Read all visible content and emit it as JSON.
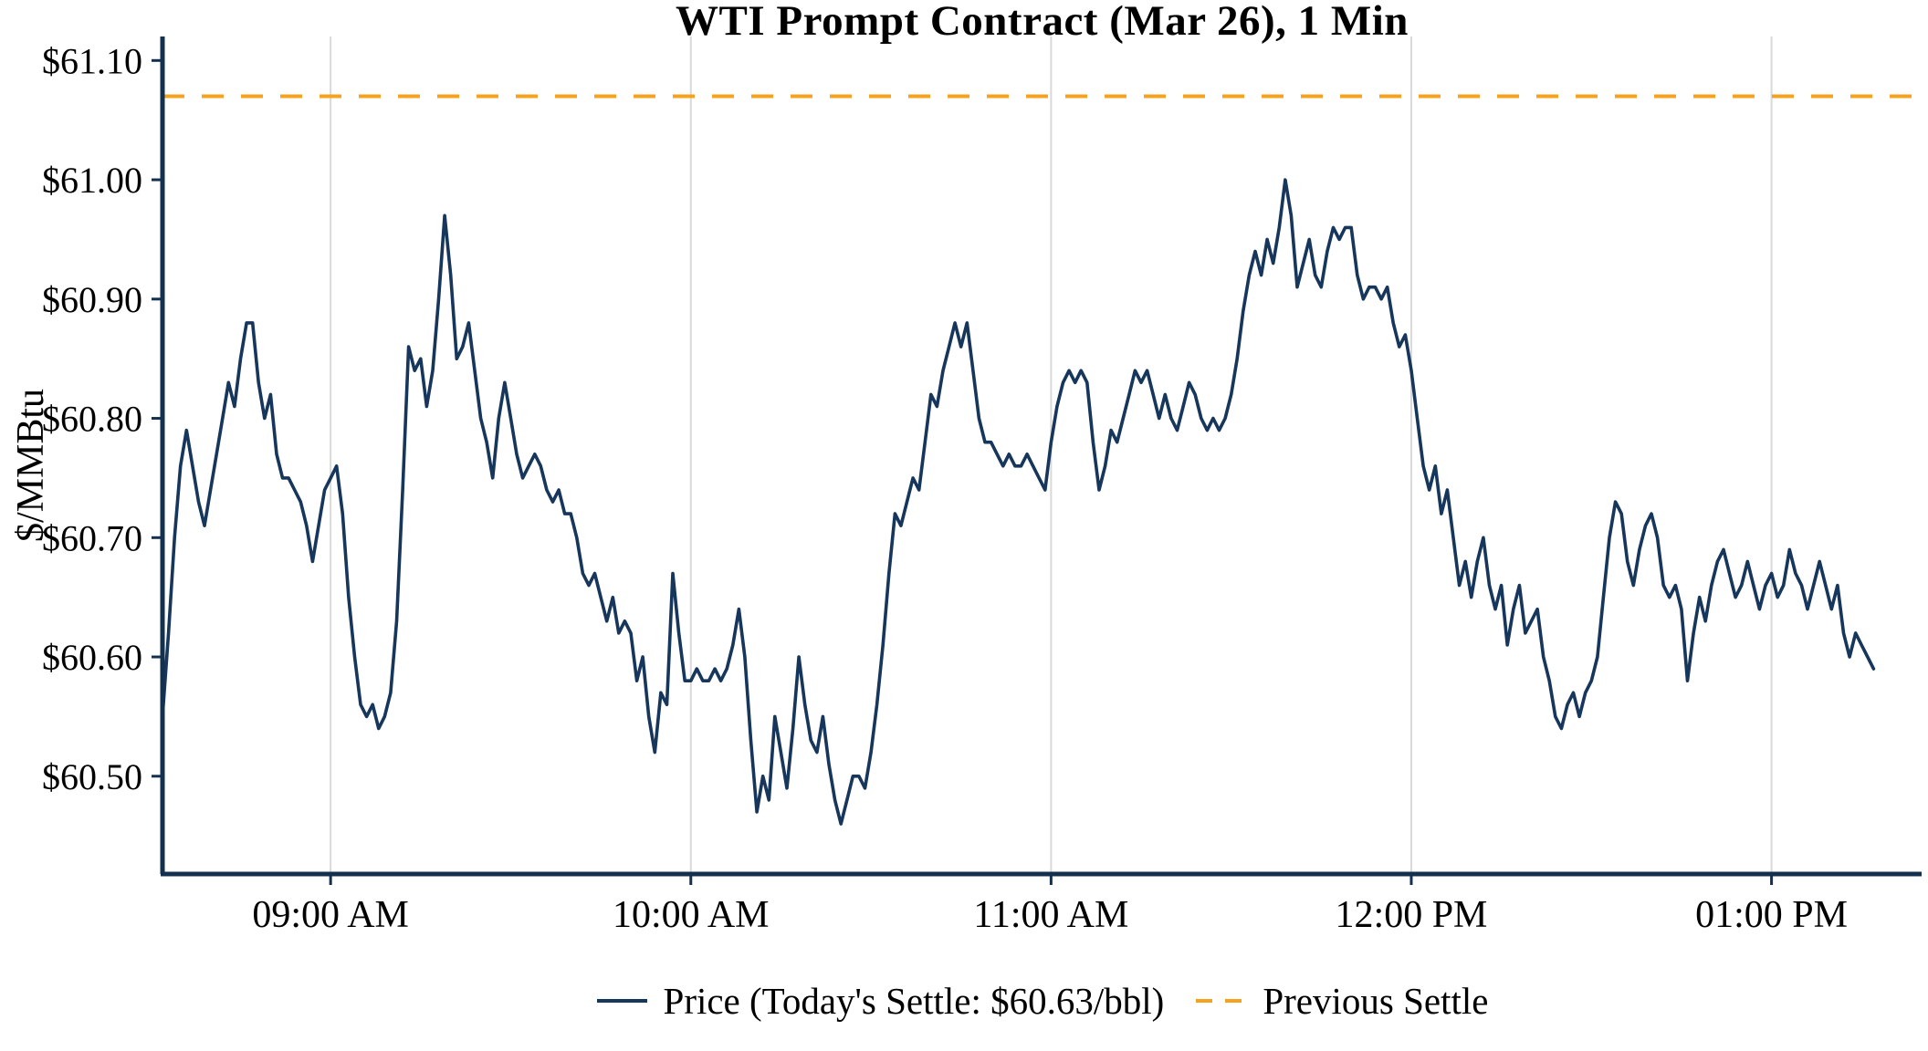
{
  "chart_data": {
    "type": "line",
    "title": "WTI Prompt Contract (Mar 26), 1 Min",
    "ylabel": "$/MMBtu",
    "xlabel": "",
    "ylim": [
      60.418,
      61.114
    ],
    "y_ticks": [
      61.1,
      61.0,
      60.9,
      60.8,
      60.7,
      60.6,
      60.5
    ],
    "y_tick_labels": [
      "$61.10",
      "$61.00",
      "$60.90",
      "$60.80",
      "$60.70",
      "$60.60",
      "$60.50"
    ],
    "x_unit": "minutes-since-midnight",
    "x_range": [
      512,
      805
    ],
    "x_ticks": [
      540,
      600,
      660,
      720,
      780
    ],
    "x_tick_labels": [
      "09:00 AM",
      "10:00 AM",
      "11:00 AM",
      "12:00 PM",
      "01:00 PM"
    ],
    "grid": "vertical",
    "legend_position": "bottom",
    "previous_settle": 61.07,
    "todays_settle": 60.63,
    "colors": {
      "axis": "#14304f",
      "grid": "#d9d9d9",
      "price_line": "#16365c",
      "previous_settle_line": "#f6a21d",
      "text": "#000000",
      "background": "#ffffff"
    },
    "series": [
      {
        "name": "Price (Today's Settle: $60.63/bbl)",
        "type": "line",
        "color": "#16365c",
        "start_minute": 512,
        "step_minutes": 1,
        "values": [
          60.55,
          60.62,
          60.7,
          60.76,
          60.79,
          60.76,
          60.73,
          60.71,
          60.74,
          60.77,
          60.8,
          60.83,
          60.81,
          60.85,
          60.88,
          60.88,
          60.83,
          60.8,
          60.82,
          60.77,
          60.75,
          60.75,
          60.74,
          60.73,
          60.71,
          60.68,
          60.71,
          60.74,
          60.75,
          60.76,
          60.72,
          60.65,
          60.6,
          60.56,
          60.55,
          60.56,
          60.54,
          60.55,
          60.57,
          60.63,
          60.74,
          60.86,
          60.84,
          60.85,
          60.81,
          60.84,
          60.9,
          60.97,
          60.92,
          60.85,
          60.86,
          60.88,
          60.84,
          60.8,
          60.78,
          60.75,
          60.8,
          60.83,
          60.8,
          60.77,
          60.75,
          60.76,
          60.77,
          60.76,
          60.74,
          60.73,
          60.74,
          60.72,
          60.72,
          60.7,
          60.67,
          60.66,
          60.67,
          60.65,
          60.63,
          60.65,
          60.62,
          60.63,
          60.62,
          60.58,
          60.6,
          60.55,
          60.52,
          60.57,
          60.56,
          60.67,
          60.62,
          60.58,
          60.58,
          60.59,
          60.58,
          60.58,
          60.59,
          60.58,
          60.59,
          60.61,
          60.64,
          60.6,
          60.53,
          60.47,
          60.5,
          60.48,
          60.55,
          60.52,
          60.49,
          60.54,
          60.6,
          60.56,
          60.53,
          60.52,
          60.55,
          60.51,
          60.48,
          60.46,
          60.48,
          60.5,
          60.5,
          60.49,
          60.52,
          60.56,
          60.61,
          60.67,
          60.72,
          60.71,
          60.73,
          60.75,
          60.74,
          60.78,
          60.82,
          60.81,
          60.84,
          60.86,
          60.88,
          60.86,
          60.88,
          60.84,
          60.8,
          60.78,
          60.78,
          60.77,
          60.76,
          60.77,
          60.76,
          60.76,
          60.77,
          60.76,
          60.75,
          60.74,
          60.78,
          60.81,
          60.83,
          60.84,
          60.83,
          60.84,
          60.83,
          60.78,
          60.74,
          60.76,
          60.79,
          60.78,
          60.8,
          60.82,
          60.84,
          60.83,
          60.84,
          60.82,
          60.8,
          60.82,
          60.8,
          60.79,
          60.81,
          60.83,
          60.82,
          60.8,
          60.79,
          60.8,
          60.79,
          60.8,
          60.82,
          60.85,
          60.89,
          60.92,
          60.94,
          60.92,
          60.95,
          60.93,
          60.96,
          61.0,
          60.97,
          60.91,
          60.93,
          60.95,
          60.92,
          60.91,
          60.94,
          60.96,
          60.95,
          60.96,
          60.96,
          60.92,
          60.9,
          60.91,
          60.91,
          60.9,
          60.91,
          60.88,
          60.86,
          60.87,
          60.84,
          60.8,
          60.76,
          60.74,
          60.76,
          60.72,
          60.74,
          60.7,
          60.66,
          60.68,
          60.65,
          60.68,
          60.7,
          60.66,
          60.64,
          60.66,
          60.61,
          60.64,
          60.66,
          60.62,
          60.63,
          60.64,
          60.6,
          60.58,
          60.55,
          60.54,
          60.56,
          60.57,
          60.55,
          60.57,
          60.58,
          60.6,
          60.65,
          60.7,
          60.73,
          60.72,
          60.68,
          60.66,
          60.69,
          60.71,
          60.72,
          60.7,
          60.66,
          60.65,
          60.66,
          60.64,
          60.58,
          60.62,
          60.65,
          60.63,
          60.66,
          60.68,
          60.69,
          60.67,
          60.65,
          60.66,
          60.68,
          60.66,
          60.64,
          60.66,
          60.67,
          60.65,
          60.66,
          60.69,
          60.67,
          60.66,
          60.64,
          60.66,
          60.68,
          60.66,
          60.64,
          60.66,
          60.62,
          60.6,
          60.62,
          60.61,
          60.6,
          60.59
        ]
      },
      {
        "name": "Previous Settle",
        "type": "hline",
        "style": "dashed",
        "color": "#f6a21d",
        "value": 61.07
      }
    ]
  }
}
